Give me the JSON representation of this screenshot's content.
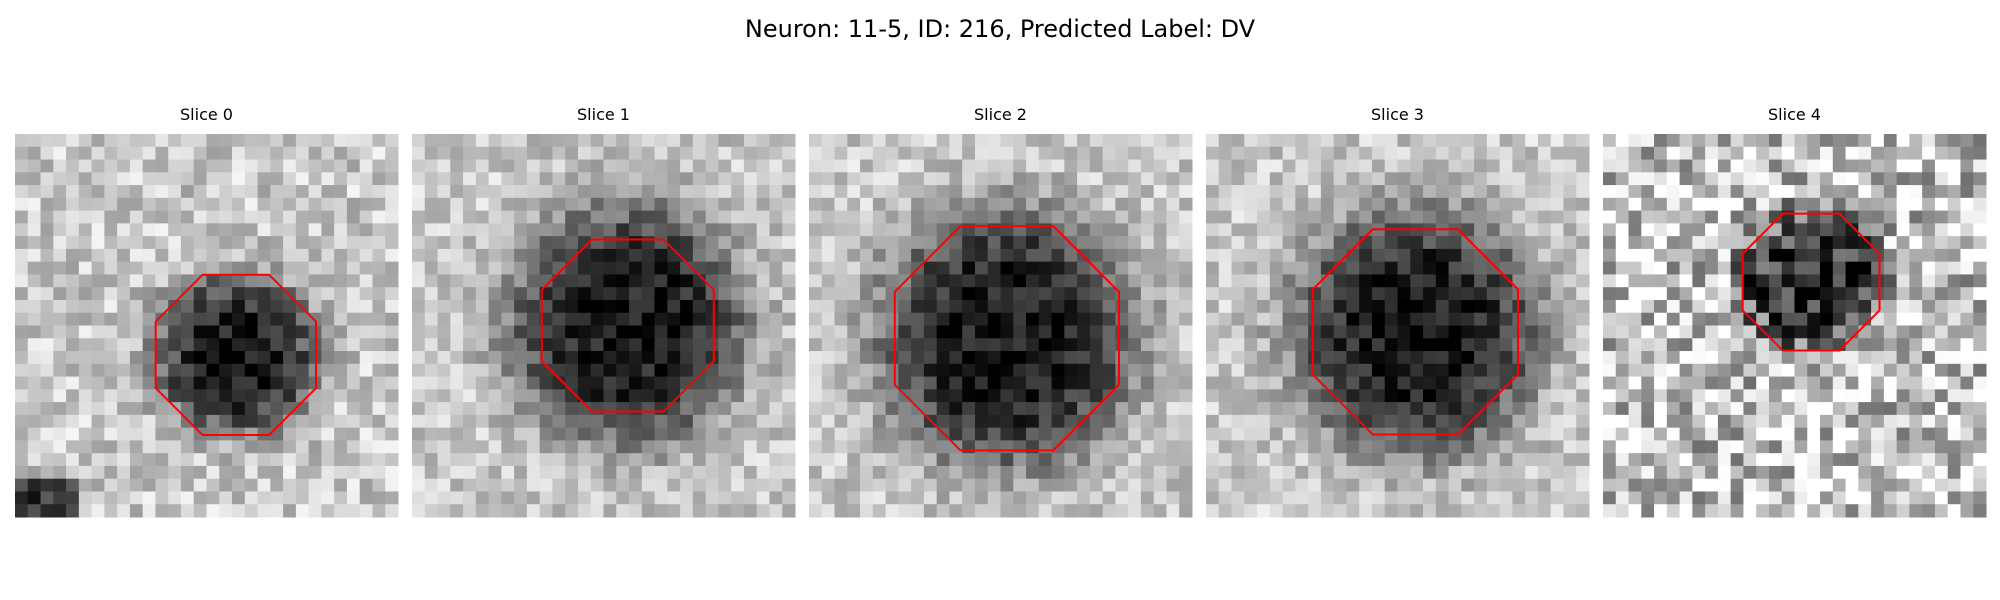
{
  "title": "Neuron: 11-5, ID: 216, Predicted Label: DV",
  "panels": [
    {
      "title": "Slice 0"
    },
    {
      "title": "Slice 1"
    },
    {
      "title": "Slice 2"
    },
    {
      "title": "Slice 3"
    },
    {
      "title": "Slice 4"
    }
  ]
}
